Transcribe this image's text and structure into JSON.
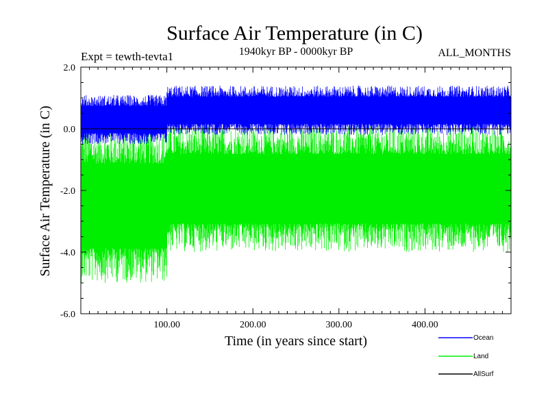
{
  "chart_data": {
    "type": "line",
    "title": "Surface Air Temperature (in C)",
    "subtitle": "1940kyr BP - 0000kyr BP",
    "expt_label": "Expt = tewth-tevta1",
    "months_label": "ALL_MONTHS",
    "xlabel": "Time (in years since start)",
    "ylabel": "Surface Air Temperature (in C)",
    "xlim": [
      0,
      500
    ],
    "ylim": [
      -6.0,
      2.0
    ],
    "xticks": [
      100,
      200,
      300,
      400
    ],
    "xtick_labels": [
      "100.00",
      "200.00",
      "300.00",
      "400.00"
    ],
    "yticks": [
      2.0,
      0.0,
      -2.0,
      -4.0,
      -6.0
    ],
    "ytick_labels": [
      "2.0",
      "0.0",
      "-2.0",
      "-4.0",
      "-6.0"
    ],
    "series": [
      {
        "name": "Ocean",
        "color": "#0000ff",
        "envelope": [
          {
            "x_start": 0,
            "x_end": 100,
            "max": 1.1,
            "min": -0.5
          },
          {
            "x_start": 100,
            "x_end": 500,
            "max": 1.4,
            "min": -0.2
          }
        ]
      },
      {
        "name": "Land",
        "color": "#00ee00",
        "envelope": [
          {
            "x_start": 0,
            "x_end": 100,
            "max": 0.0,
            "min": -5.0
          },
          {
            "x_start": 100,
            "x_end": 500,
            "max": 0.1,
            "min": -4.0
          }
        ]
      },
      {
        "name": "AllSurf",
        "color": "#000000",
        "values_note": "near zero",
        "envelope": [
          {
            "x_start": 0,
            "x_end": 500,
            "max": 0.02,
            "min": -0.02
          }
        ]
      }
    ],
    "legend": [
      "Ocean",
      "Land",
      "AllSurf"
    ],
    "legend_position": "bottom-right"
  }
}
